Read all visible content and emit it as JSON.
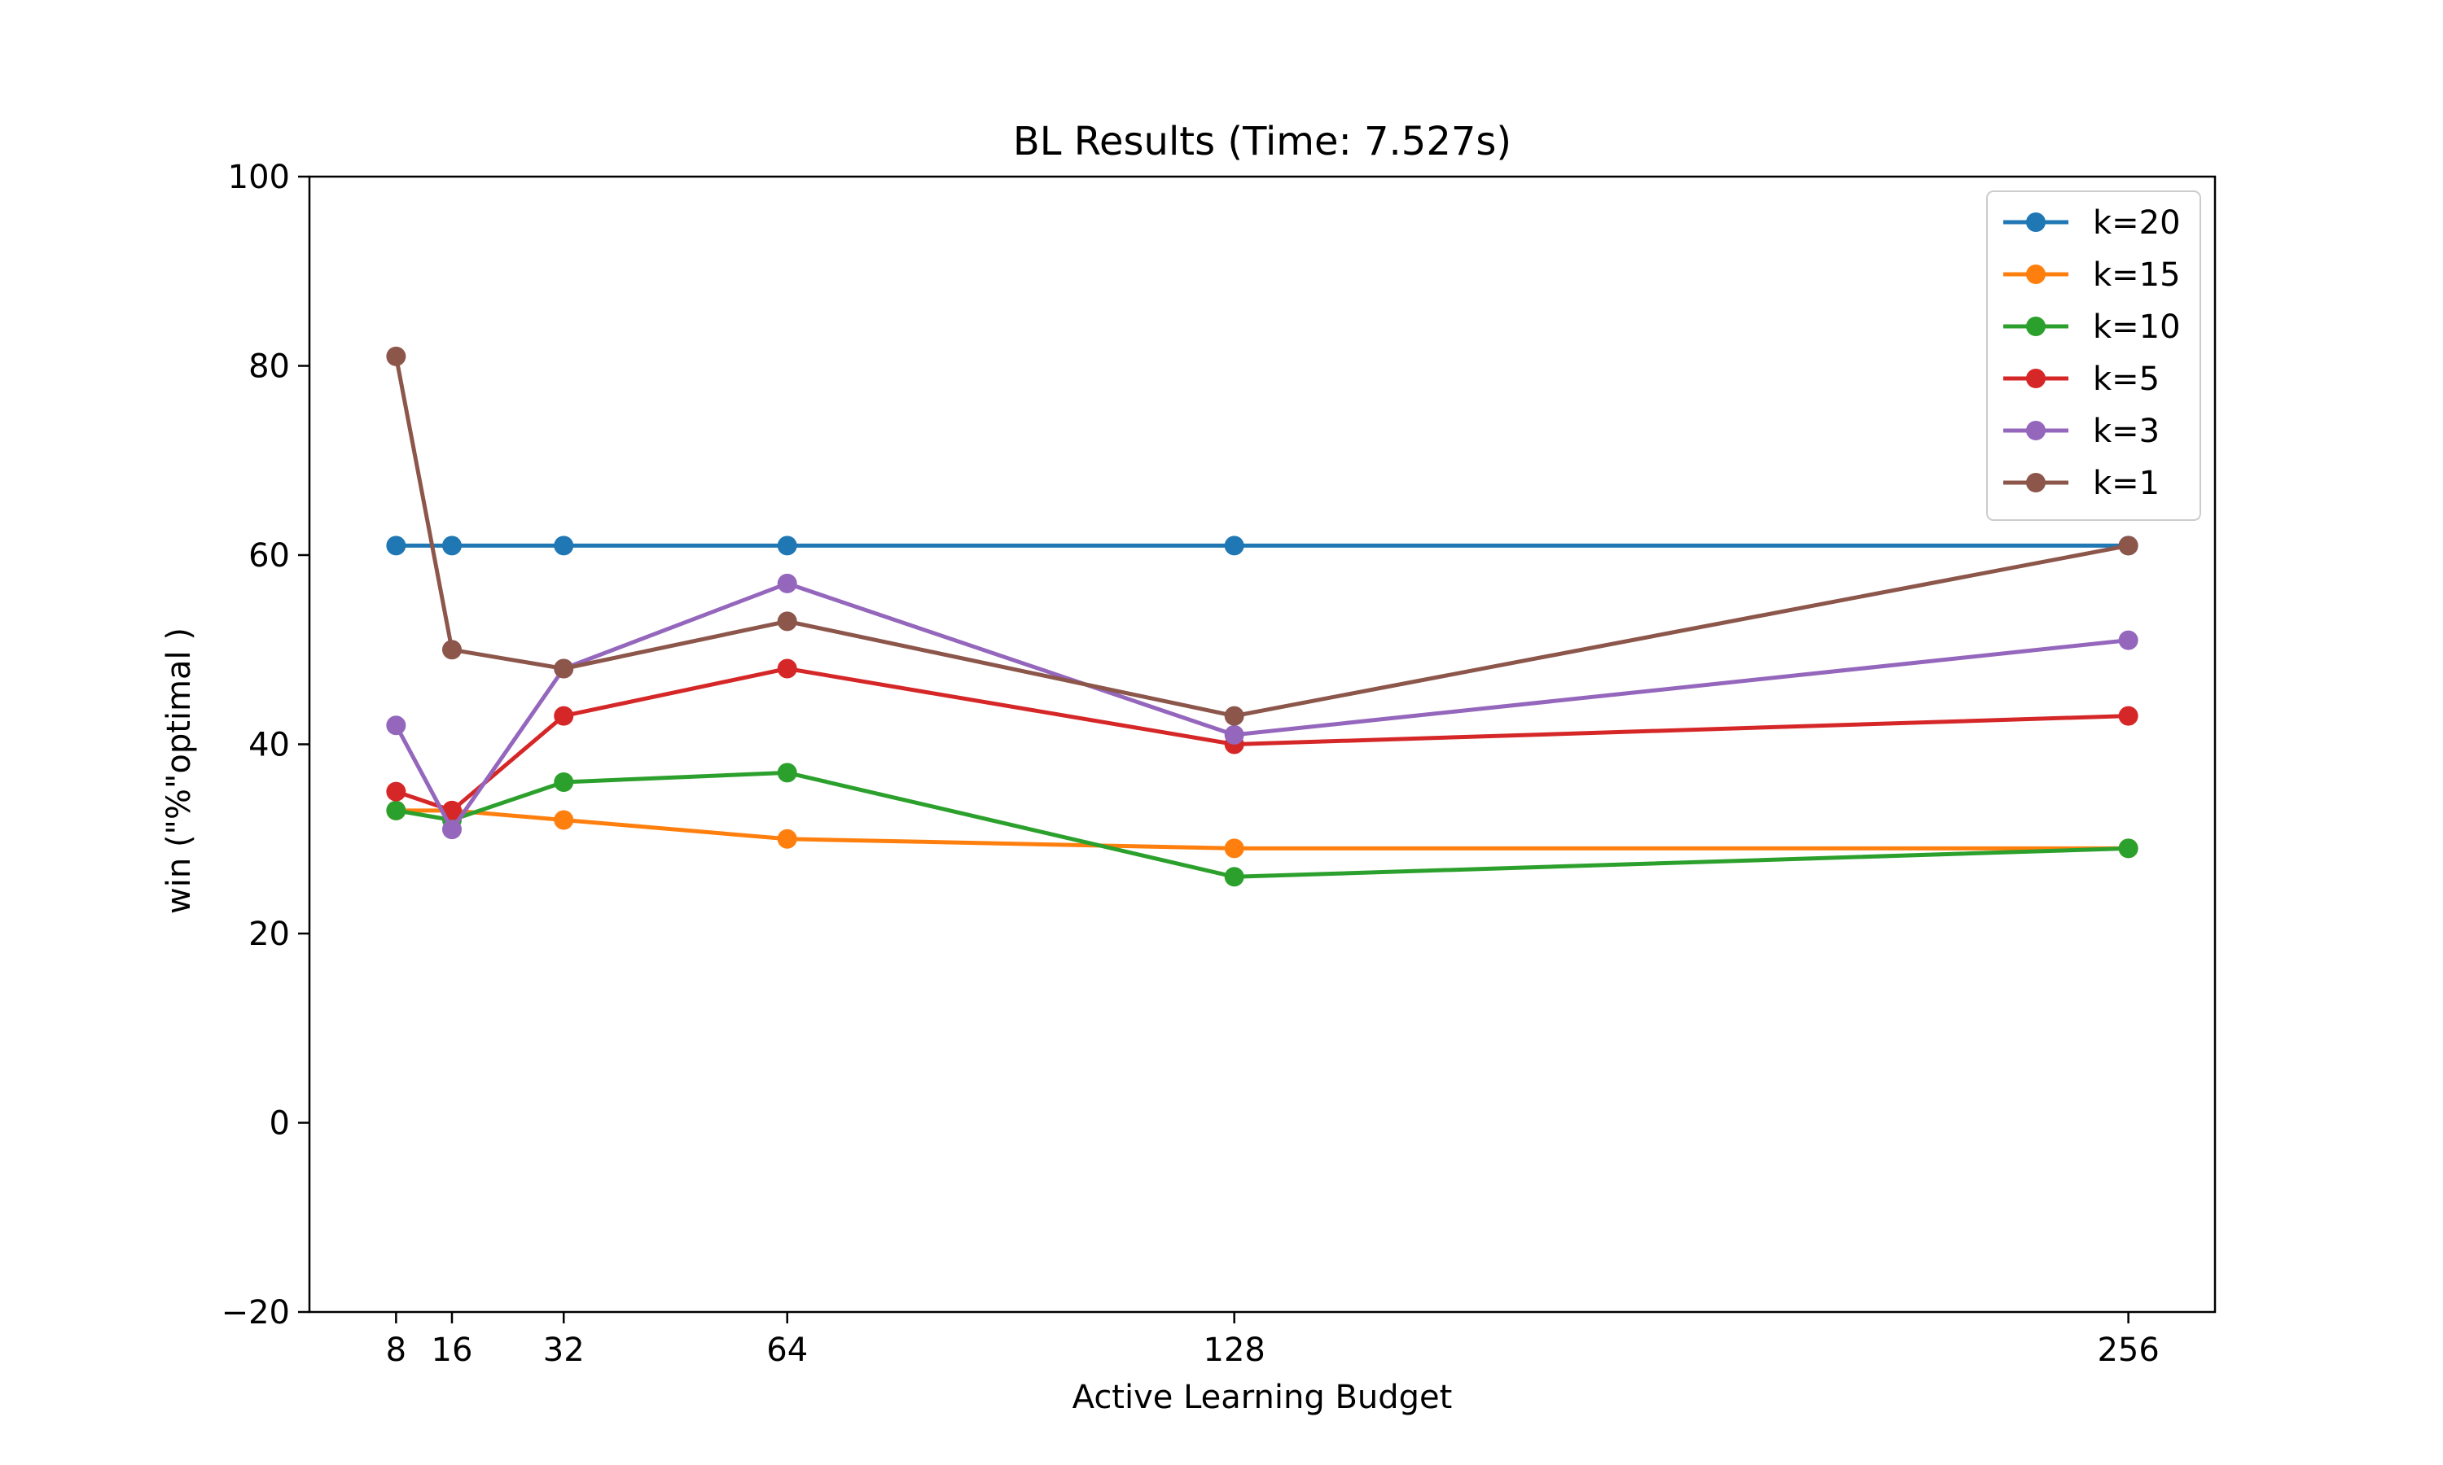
{
  "chart_data": {
    "type": "line",
    "title": "BL Results (Time: 7.527s)",
    "xlabel": "Active Learning Budget",
    "ylabel": "win (\"%\"optimal )",
    "x": [
      8,
      16,
      32,
      64,
      128,
      256
    ],
    "x_tick_labels": [
      "8",
      "16",
      "32",
      "64",
      "128",
      "256"
    ],
    "xlim": [
      -4.4,
      268.4
    ],
    "ylim": [
      -20,
      100
    ],
    "y_ticks": [
      -20,
      0,
      20,
      40,
      60,
      80,
      100
    ],
    "y_tick_labels": [
      "−20",
      "0",
      "20",
      "40",
      "60",
      "80",
      "100"
    ],
    "grid": false,
    "legend_position": "top-right",
    "series": [
      {
        "name": "k=20",
        "color": "#1f77b4",
        "values": [
          61,
          61,
          61,
          61,
          61,
          61
        ]
      },
      {
        "name": "k=15",
        "color": "#ff7f0e",
        "values": [
          33,
          33,
          32,
          30,
          29,
          29
        ]
      },
      {
        "name": "k=10",
        "color": "#2ca02c",
        "values": [
          33,
          32,
          36,
          37,
          26,
          29
        ]
      },
      {
        "name": "k=5",
        "color": "#d62728",
        "values": [
          35,
          33,
          43,
          48,
          40,
          43
        ]
      },
      {
        "name": "k=3",
        "color": "#9467bd",
        "values": [
          42,
          31,
          48,
          57,
          41,
          51
        ]
      },
      {
        "name": "k=1",
        "color": "#8c564b",
        "values": [
          81,
          50,
          48,
          53,
          43,
          61
        ]
      }
    ]
  }
}
